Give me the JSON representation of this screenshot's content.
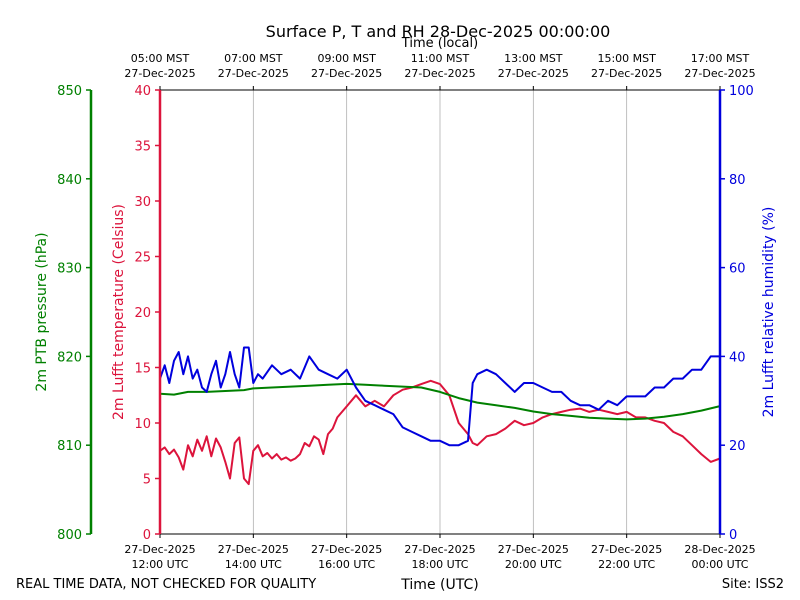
{
  "chart_data": {
    "type": "line",
    "title": "Surface P, T and RH 28-Dec-2025 00:00:00",
    "xlabel": "Time (UTC)",
    "top_xlabel": "Time (local)",
    "footer_left": "REAL TIME DATA, NOT CHECKED FOR QUALITY",
    "footer_right": "Site: ISS2",
    "xlim_hours_utc": [
      12,
      24
    ],
    "bottom_ticks": [
      {
        "date": "27-Dec-2025",
        "time": "12:00 UTC"
      },
      {
        "date": "27-Dec-2025",
        "time": "14:00 UTC"
      },
      {
        "date": "27-Dec-2025",
        "time": "16:00 UTC"
      },
      {
        "date": "27-Dec-2025",
        "time": "18:00 UTC"
      },
      {
        "date": "27-Dec-2025",
        "time": "20:00 UTC"
      },
      {
        "date": "27-Dec-2025",
        "time": "22:00 UTC"
      },
      {
        "date": "28-Dec-2025",
        "time": "00:00 UTC"
      }
    ],
    "top_ticks": [
      {
        "time": "05:00 MST",
        "date": "27-Dec-2025"
      },
      {
        "time": "07:00 MST",
        "date": "27-Dec-2025"
      },
      {
        "time": "09:00 MST",
        "date": "27-Dec-2025"
      },
      {
        "time": "11:00 MST",
        "date": "27-Dec-2025"
      },
      {
        "time": "13:00 MST",
        "date": "27-Dec-2025"
      },
      {
        "time": "15:00 MST",
        "date": "27-Dec-2025"
      },
      {
        "time": "17:00 MST",
        "date": "27-Dec-2025"
      }
    ],
    "grid": "vertical",
    "axes": {
      "temperature": {
        "label": "2m Lufft temperature (Celsius)",
        "ylim": [
          0,
          40
        ],
        "ticks": [
          "0",
          "5",
          "10",
          "15",
          "20",
          "25",
          "30",
          "35",
          "40"
        ],
        "color": "#dc143c"
      },
      "pressure": {
        "label": "2m PTB pressure (hPa)",
        "ylim": [
          800,
          850
        ],
        "ticks": [
          "800",
          "810",
          "820",
          "830",
          "840",
          "850"
        ],
        "color": "#008000"
      },
      "humidity": {
        "label": "2m Lufft relative humidity (%)",
        "ylim": [
          0,
          100
        ],
        "ticks": [
          "0",
          "20",
          "40",
          "60",
          "80",
          "100"
        ],
        "color": "#0000dd"
      }
    },
    "series": [
      {
        "name": "2m Lufft temperature (Celsius)",
        "axis": "temperature",
        "color": "#dc143c",
        "x": [
          12.0,
          12.1,
          12.2,
          12.3,
          12.4,
          12.5,
          12.6,
          12.7,
          12.8,
          12.9,
          13.0,
          13.1,
          13.2,
          13.3,
          13.4,
          13.5,
          13.6,
          13.7,
          13.8,
          13.9,
          14.0,
          14.1,
          14.2,
          14.3,
          14.4,
          14.5,
          14.6,
          14.7,
          14.8,
          14.9,
          15.0,
          15.1,
          15.2,
          15.3,
          15.4,
          15.5,
          15.6,
          15.7,
          15.8,
          15.9,
          16.0,
          16.2,
          16.4,
          16.6,
          16.8,
          17.0,
          17.2,
          17.4,
          17.6,
          17.8,
          18.0,
          18.2,
          18.4,
          18.6,
          18.7,
          18.8,
          19.0,
          19.2,
          19.4,
          19.6,
          19.8,
          20.0,
          20.2,
          20.4,
          20.6,
          20.8,
          21.0,
          21.2,
          21.4,
          21.6,
          21.8,
          22.0,
          22.2,
          22.4,
          22.6,
          22.8,
          23.0,
          23.2,
          23.4,
          23.6,
          23.8,
          24.0
        ],
        "y": [
          7.5,
          7.8,
          7.2,
          7.6,
          6.9,
          5.8,
          8.0,
          7.0,
          8.5,
          7.5,
          8.8,
          7.0,
          8.6,
          7.8,
          6.5,
          5.0,
          8.2,
          8.7,
          5.0,
          4.5,
          7.5,
          8.0,
          7.0,
          7.3,
          6.8,
          7.2,
          6.7,
          6.9,
          6.6,
          6.8,
          7.2,
          8.2,
          7.9,
          8.8,
          8.5,
          7.2,
          9.0,
          9.5,
          10.5,
          11.0,
          11.5,
          12.5,
          11.5,
          12.0,
          11.5,
          12.5,
          13.0,
          13.2,
          13.5,
          13.8,
          13.5,
          12.5,
          10.0,
          9.0,
          8.2,
          8.0,
          8.8,
          9.0,
          9.5,
          10.2,
          9.8,
          10.0,
          10.5,
          10.8,
          11.0,
          11.2,
          11.3,
          11.0,
          11.2,
          11.0,
          10.8,
          11.0,
          10.5,
          10.5,
          10.2,
          10.0,
          9.2,
          8.8,
          8.0,
          7.2,
          6.5,
          6.8
        ]
      },
      {
        "name": "2m PTB pressure (hPa)",
        "axis": "pressure",
        "color": "#008000",
        "x": [
          12.0,
          12.3,
          12.6,
          13.0,
          13.4,
          13.8,
          14.0,
          14.4,
          14.8,
          15.2,
          15.6,
          16.0,
          16.4,
          16.8,
          17.2,
          17.6,
          18.0,
          18.4,
          18.8,
          19.2,
          19.6,
          20.0,
          20.4,
          20.8,
          21.2,
          21.6,
          22.0,
          22.4,
          22.8,
          23.2,
          23.6,
          24.0
        ],
        "y": [
          815.8,
          815.7,
          816.0,
          816.0,
          816.1,
          816.2,
          816.4,
          816.5,
          816.6,
          816.7,
          816.8,
          816.9,
          816.8,
          816.7,
          816.6,
          816.5,
          816.0,
          815.3,
          814.8,
          814.5,
          814.2,
          813.8,
          813.5,
          813.3,
          813.1,
          813.0,
          812.9,
          813.0,
          813.2,
          813.5,
          813.9,
          814.4
        ]
      },
      {
        "name": "2m Lufft relative humidity (%)",
        "axis": "humidity",
        "color": "#0000dd",
        "x": [
          12.0,
          12.1,
          12.2,
          12.3,
          12.4,
          12.5,
          12.6,
          12.7,
          12.8,
          12.9,
          13.0,
          13.1,
          13.2,
          13.3,
          13.4,
          13.5,
          13.6,
          13.7,
          13.8,
          13.9,
          14.0,
          14.1,
          14.2,
          14.4,
          14.6,
          14.8,
          15.0,
          15.2,
          15.4,
          15.6,
          15.8,
          16.0,
          16.2,
          16.4,
          16.6,
          16.8,
          17.0,
          17.2,
          17.4,
          17.6,
          17.8,
          18.0,
          18.2,
          18.4,
          18.6,
          18.7,
          18.8,
          19.0,
          19.2,
          19.4,
          19.6,
          19.8,
          20.0,
          20.2,
          20.4,
          20.6,
          20.8,
          21.0,
          21.2,
          21.4,
          21.6,
          21.8,
          22.0,
          22.2,
          22.4,
          22.6,
          22.8,
          23.0,
          23.2,
          23.4,
          23.6,
          23.8,
          23.9,
          24.0
        ],
        "y": [
          35,
          38,
          34,
          39,
          41,
          36,
          40,
          35,
          37,
          33,
          32,
          36,
          39,
          33,
          36,
          41,
          36,
          33,
          42,
          42,
          34,
          36,
          35,
          38,
          36,
          37,
          35,
          40,
          37,
          36,
          35,
          37,
          33,
          30,
          29,
          28,
          27,
          24,
          23,
          22,
          21,
          21,
          20,
          20,
          21,
          34,
          36,
          37,
          36,
          34,
          32,
          34,
          34,
          33,
          32,
          32,
          30,
          29,
          29,
          28,
          30,
          29,
          31,
          31,
          31,
          33,
          33,
          35,
          35,
          37,
          37,
          40,
          40,
          40
        ]
      }
    ]
  }
}
